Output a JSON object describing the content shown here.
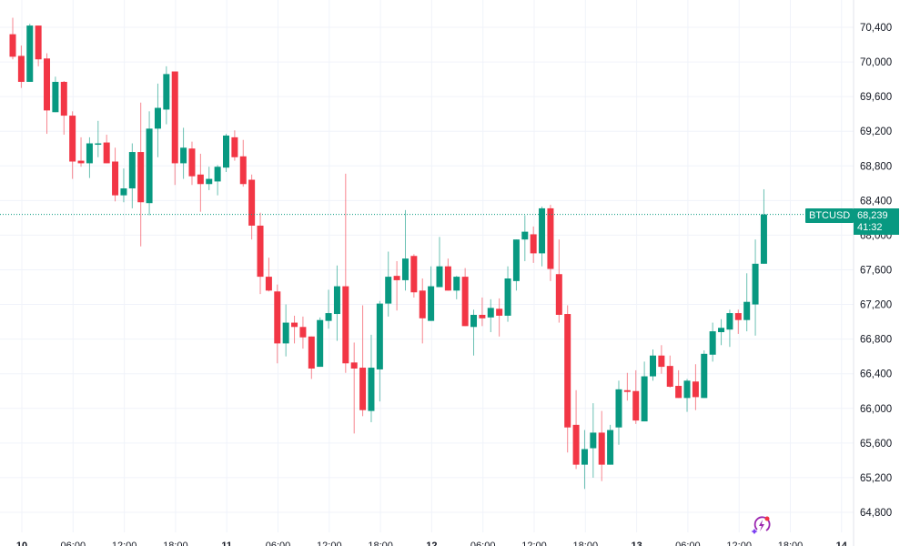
{
  "chart_data": {
    "type": "candlestick",
    "symbol": "BTCUSD",
    "interval_hours": 1,
    "last_price_label": "68,239",
    "countdown": "41:32",
    "ylim": [
      64600,
      70600
    ],
    "y_ticks": [
      "70,400",
      "70,000",
      "69,600",
      "69,200",
      "68,800",
      "68,400",
      "68,000",
      "67,600",
      "67,200",
      "66,800",
      "66,400",
      "66,000",
      "65,600",
      "65,200",
      "64,800"
    ],
    "y_tick_values": [
      70400,
      70000,
      69600,
      69200,
      68800,
      68400,
      68000,
      67600,
      67200,
      66800,
      66400,
      66000,
      65600,
      65200,
      64800
    ],
    "x_ticks": [
      {
        "label": "10",
        "major": true
      },
      {
        "label": "06:00"
      },
      {
        "label": "12:00"
      },
      {
        "label": "18:00"
      },
      {
        "label": "11",
        "major": true
      },
      {
        "label": "06:00"
      },
      {
        "label": "12:00"
      },
      {
        "label": "18:00"
      },
      {
        "label": "12",
        "major": true
      },
      {
        "label": "06:00"
      },
      {
        "label": "12:00"
      },
      {
        "label": "18:00"
      },
      {
        "label": "13",
        "major": true
      },
      {
        "label": "06:00"
      },
      {
        "label": "12:00"
      },
      {
        "label": "18:00"
      },
      {
        "label": "14",
        "major": true
      }
    ],
    "grid": true,
    "colors": {
      "up": "#089981",
      "down": "#F23645",
      "grid": "#F0F3FA",
      "text": "#131722"
    },
    "candles": [
      [
        70320,
        70510,
        70030,
        70060
      ],
      [
        70070,
        70190,
        69700,
        69770
      ],
      [
        69770,
        70440,
        69770,
        70420
      ],
      [
        70420,
        70420,
        69950,
        70030
      ],
      [
        70040,
        70100,
        69170,
        69440
      ],
      [
        69420,
        69830,
        69420,
        69770
      ],
      [
        69770,
        69780,
        69160,
        69380
      ],
      [
        69380,
        69430,
        68650,
        68850
      ],
      [
        68860,
        69130,
        68790,
        68830
      ],
      [
        68830,
        69130,
        68660,
        69060
      ],
      [
        69050,
        69320,
        68900,
        69060
      ],
      [
        69070,
        69160,
        68830,
        68830
      ],
      [
        68850,
        69010,
        68390,
        68460
      ],
      [
        68460,
        68770,
        68380,
        68540
      ],
      [
        68540,
        69060,
        68310,
        68960
      ],
      [
        68960,
        69530,
        67870,
        68380
      ],
      [
        68370,
        69430,
        68230,
        69230
      ],
      [
        69230,
        69750,
        68900,
        69470
      ],
      [
        69450,
        69950,
        69280,
        69860
      ],
      [
        69890,
        69890,
        68580,
        68830
      ],
      [
        68830,
        69240,
        68650,
        69010
      ],
      [
        69000,
        69080,
        68580,
        68680
      ],
      [
        68700,
        68940,
        68270,
        68590
      ],
      [
        68590,
        68790,
        68520,
        68650
      ],
      [
        68620,
        68810,
        68460,
        68790
      ],
      [
        68780,
        69170,
        68730,
        69150
      ],
      [
        69130,
        69210,
        68860,
        68900
      ],
      [
        68910,
        69100,
        68560,
        68590
      ],
      [
        68640,
        68700,
        67950,
        68110
      ],
      [
        68110,
        68260,
        67320,
        67520
      ],
      [
        67520,
        67740,
        67350,
        67360
      ],
      [
        67350,
        67430,
        66520,
        66750
      ],
      [
        66750,
        67200,
        66600,
        66990
      ],
      [
        66990,
        67070,
        66750,
        66940
      ],
      [
        66940,
        67060,
        66690,
        66820
      ],
      [
        66830,
        66830,
        66340,
        66460
      ],
      [
        66480,
        67050,
        66480,
        67020
      ],
      [
        67010,
        67370,
        66920,
        67100
      ],
      [
        67090,
        67650,
        66780,
        67410
      ],
      [
        67410,
        68710,
        66410,
        66520
      ],
      [
        66530,
        66760,
        65710,
        66460
      ],
      [
        66470,
        67190,
        65910,
        65980
      ],
      [
        65970,
        66850,
        65840,
        66470
      ],
      [
        66450,
        67240,
        66080,
        67210
      ],
      [
        67210,
        67810,
        67060,
        67520
      ],
      [
        67530,
        67700,
        67130,
        67480
      ],
      [
        67480,
        68290,
        67360,
        67730
      ],
      [
        67760,
        67780,
        67280,
        67340
      ],
      [
        67360,
        67500,
        66750,
        67040
      ],
      [
        67010,
        67640,
        67010,
        67410
      ],
      [
        67400,
        67980,
        67400,
        67640
      ],
      [
        67640,
        67730,
        67360,
        67360
      ],
      [
        67360,
        67530,
        67260,
        67520
      ],
      [
        67520,
        67620,
        66950,
        66950
      ],
      [
        66940,
        67140,
        66610,
        67080
      ],
      [
        67080,
        67280,
        66950,
        67040
      ],
      [
        67050,
        67260,
        66880,
        67160
      ],
      [
        67150,
        67270,
        66830,
        67070
      ],
      [
        67070,
        67640,
        67000,
        67500
      ],
      [
        67470,
        67950,
        67360,
        67950
      ],
      [
        67950,
        68230,
        67700,
        68040
      ],
      [
        68010,
        68100,
        67680,
        67790
      ],
      [
        67790,
        68330,
        67640,
        68310
      ],
      [
        68310,
        68350,
        67470,
        67610
      ],
      [
        67550,
        67950,
        66990,
        67080
      ],
      [
        67090,
        67190,
        65490,
        65780
      ],
      [
        65810,
        66210,
        65300,
        65350
      ],
      [
        65350,
        65750,
        65070,
        65530
      ],
      [
        65540,
        66060,
        65200,
        65720
      ],
      [
        65720,
        65970,
        65160,
        65350
      ],
      [
        65350,
        65810,
        65350,
        65750
      ],
      [
        65780,
        66320,
        65580,
        66220
      ],
      [
        66210,
        66410,
        66090,
        66190
      ],
      [
        66200,
        66440,
        65820,
        65860
      ],
      [
        65850,
        66540,
        65850,
        66370
      ],
      [
        66370,
        66680,
        66320,
        66610
      ],
      [
        66610,
        66730,
        66400,
        66480
      ],
      [
        66490,
        66610,
        66240,
        66250
      ],
      [
        66260,
        66440,
        66120,
        66120
      ],
      [
        66120,
        66340,
        65960,
        66320
      ],
      [
        66310,
        66510,
        65980,
        66130
      ],
      [
        66120,
        66670,
        66120,
        66630
      ],
      [
        66620,
        66990,
        66540,
        66890
      ],
      [
        66880,
        67030,
        66730,
        66930
      ],
      [
        66910,
        67140,
        66710,
        67100
      ],
      [
        67100,
        67140,
        66860,
        67020
      ],
      [
        67020,
        67560,
        66890,
        67230
      ],
      [
        67200,
        67950,
        66840,
        67670
      ],
      [
        67670,
        68530,
        67670,
        68239
      ]
    ]
  },
  "price_label": {
    "symbol": "BTCUSD",
    "price": "68,239",
    "countdown": "41:32"
  },
  "logo_icon": "tradingview-lightning-icon"
}
